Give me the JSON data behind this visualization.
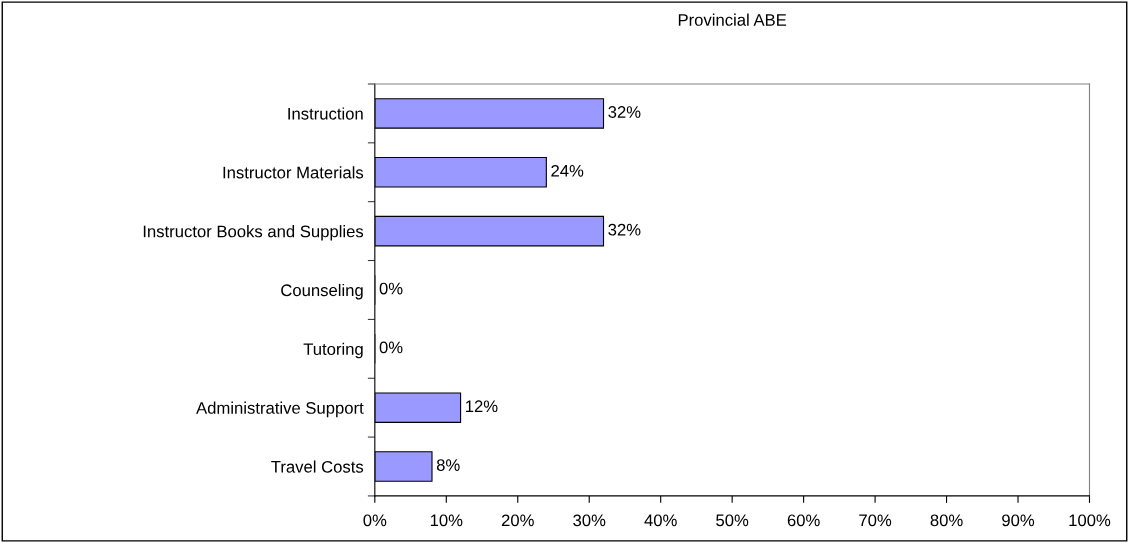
{
  "chart_data": {
    "type": "bar",
    "orientation": "horizontal",
    "title": "Provincial ABE",
    "categories": [
      "Instruction",
      "Instructor Materials",
      "Instructor Books and Supplies",
      "Counseling",
      "Tutoring",
      "Administrative Support",
      "Travel Costs"
    ],
    "values": [
      32,
      24,
      32,
      0,
      0,
      12,
      8
    ],
    "value_labels": [
      "32%",
      "24%",
      "32%",
      "0%",
      "0%",
      "12%",
      "8%"
    ],
    "color": "#9999ff",
    "xlim": [
      0,
      100
    ],
    "xticks": [
      {
        "value": 0,
        "label": "0%"
      },
      {
        "value": 10,
        "label": "10%"
      },
      {
        "value": 20,
        "label": "20%"
      },
      {
        "value": 30,
        "label": "30%"
      },
      {
        "value": 40,
        "label": "40%"
      },
      {
        "value": 50,
        "label": "50%"
      },
      {
        "value": 60,
        "label": "60%"
      },
      {
        "value": 70,
        "label": "70%"
      },
      {
        "value": 80,
        "label": "80%"
      },
      {
        "value": 90,
        "label": "90%"
      },
      {
        "value": 100,
        "label": "100%"
      }
    ],
    "grid": false,
    "legend": false
  }
}
